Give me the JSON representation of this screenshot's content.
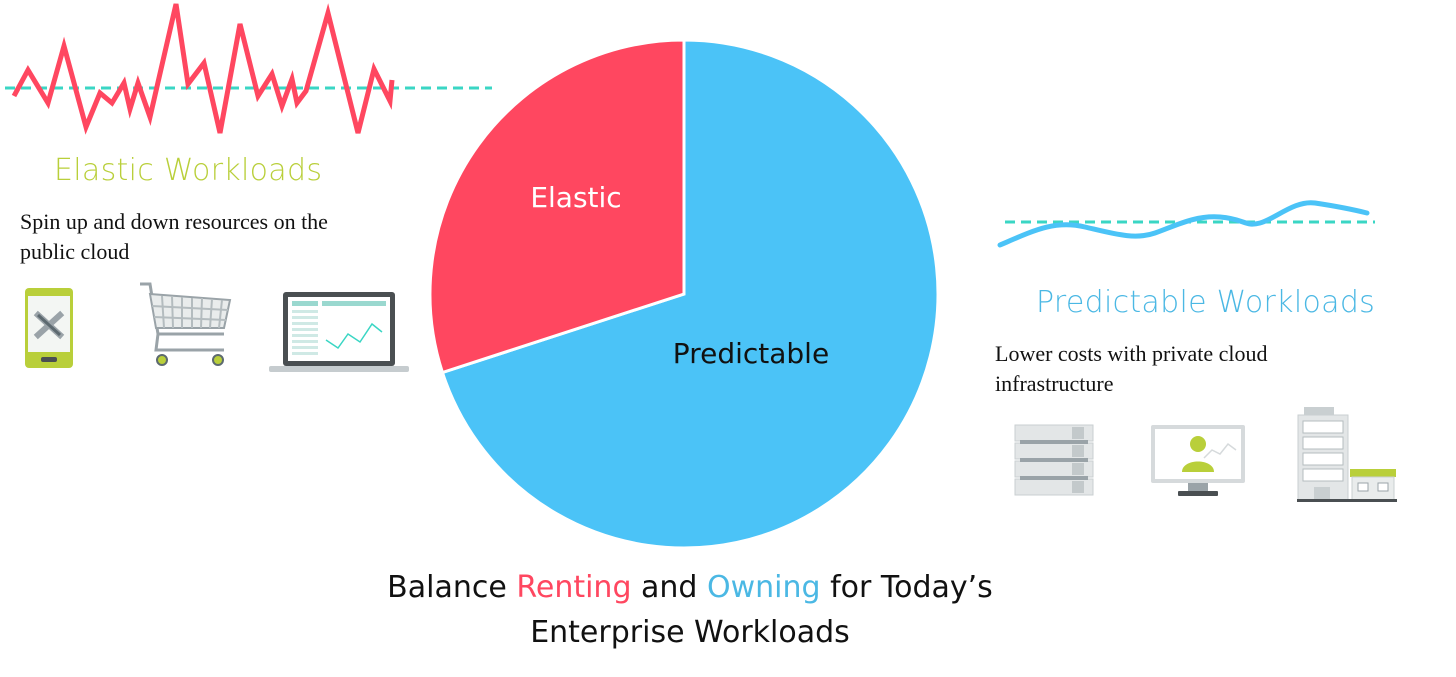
{
  "colors": {
    "elastic": "#ff4760",
    "predictable": "#4bc3f7",
    "heading_elastic": "#b9cf3a",
    "heading_predictable": "#4bb8e4",
    "dashed": "#3ad6c4"
  },
  "chart_data": {
    "type": "pie",
    "slices": [
      {
        "label": "Elastic",
        "value": 30
      },
      {
        "label": "Predictable",
        "value": 70
      }
    ]
  },
  "left": {
    "heading": "Elastic Workloads",
    "description": "Spin up and down resources on the public cloud",
    "icons": [
      "smartphone-icon",
      "shopping-cart-icon",
      "laptop-dashboard-icon"
    ]
  },
  "right": {
    "heading": "Predictable Workloads",
    "description": "Lower costs with private cloud infrastructure",
    "icons": [
      "server-rack-icon",
      "monitor-user-icon",
      "office-building-icon"
    ]
  },
  "caption": {
    "part1": "Balance ",
    "renting": "Renting",
    "part2": " and ",
    "owning": "Owning",
    "part3": " for Today’s",
    "line2": "Enterprise Workloads"
  }
}
